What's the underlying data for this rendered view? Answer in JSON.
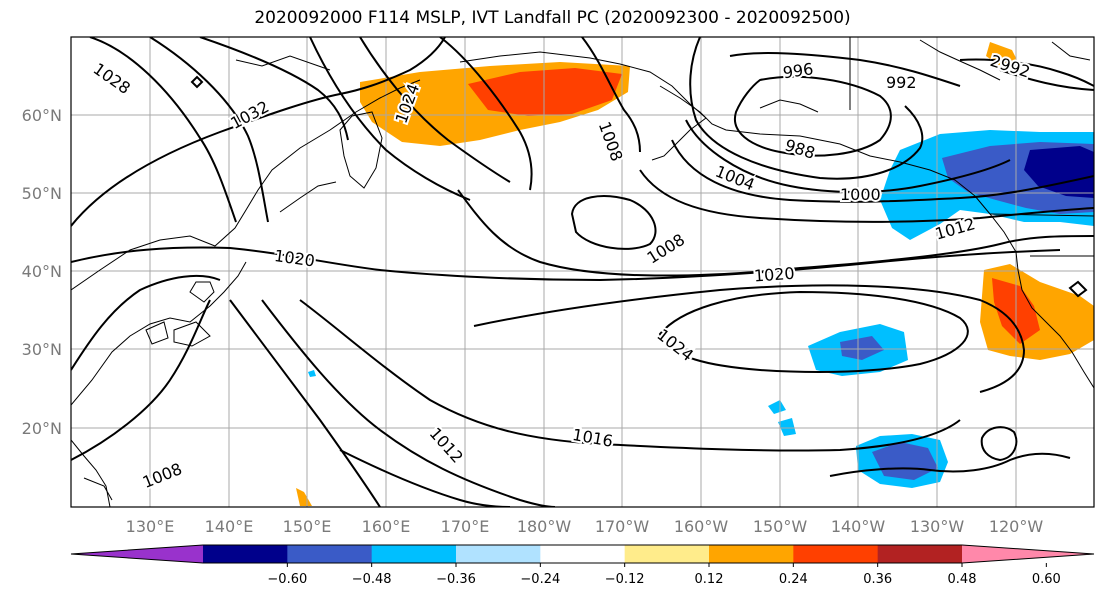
{
  "title": "2020092000 F114 MSLP, IVT Landfall PC (2020092300 - 2020092500)",
  "lat_labels": [
    "60°N",
    "50°N",
    "40°N",
    "30°N",
    "20°N"
  ],
  "lon_labels": [
    "130°E",
    "140°E",
    "150°E",
    "160°E",
    "170°E",
    "180°W",
    "170°W",
    "160°W",
    "150°W",
    "140°W",
    "130°W",
    "120°W"
  ],
  "contour_labels": [
    "1028",
    "1032",
    "1024",
    "1008",
    "996",
    "992",
    "2992",
    "988",
    "1004",
    "1000",
    "1012",
    "1008",
    "1020",
    "1020",
    "1024",
    "1008",
    "1012",
    "1016"
  ],
  "colorbar": {
    "ticks": [
      "−0.60",
      "−0.48",
      "−0.36",
      "−0.24",
      "−0.12",
      "0.12",
      "0.24",
      "0.36",
      "0.48",
      "0.60"
    ],
    "colors": [
      "#9932cc",
      "#00008b",
      "#3a5bc7",
      "#00bfff",
      "#b0e2ff",
      "#ffffff",
      "#ffec8b",
      "#ffa500",
      "#ff4000",
      "#b22222",
      "#ff88aa"
    ]
  }
}
